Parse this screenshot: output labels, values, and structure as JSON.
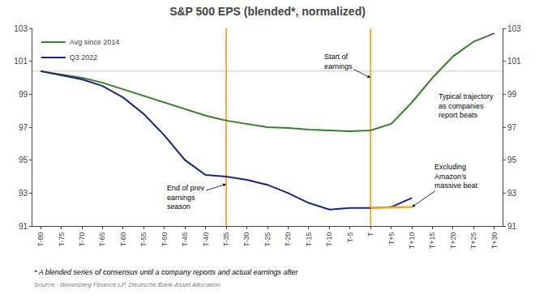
{
  "chart_data": {
    "type": "line",
    "title": "S&P 500 EPS (blended*, normalized)",
    "x": [
      -80,
      -75,
      -70,
      -65,
      -60,
      -55,
      -50,
      -45,
      -40,
      -35,
      -30,
      -25,
      -20,
      -15,
      -10,
      -5,
      0,
      5,
      10,
      15,
      20,
      25,
      30
    ],
    "series": [
      {
        "name": "Avg since 2014",
        "color": "#3a7d2c",
        "values": [
          100.4,
          100.2,
          100.0,
          99.7,
          99.3,
          98.9,
          98.5,
          98.1,
          97.7,
          97.4,
          97.2,
          97.0,
          96.95,
          96.85,
          96.8,
          96.75,
          96.8,
          97.2,
          98.5,
          100.0,
          101.3,
          102.2,
          102.7
        ]
      },
      {
        "name": "Q3 2022",
        "color": "#1a237e",
        "values": [
          100.4,
          100.15,
          99.9,
          99.5,
          98.8,
          97.8,
          96.5,
          95.0,
          94.1,
          94.0,
          93.8,
          93.5,
          93.0,
          92.4,
          92.0,
          92.1,
          92.1,
          92.15,
          92.7,
          null,
          null,
          null,
          null
        ]
      },
      {
        "color": "#f5a623",
        "x": [
          0,
          10
        ],
        "values": [
          92.1,
          92.15
        ]
      }
    ],
    "xlim": [
      -82,
      32
    ],
    "xticks": [
      {
        "value": -80,
        "label": "T-80"
      },
      {
        "value": -75,
        "label": "T-75"
      },
      {
        "value": -70,
        "label": "T-70"
      },
      {
        "value": -65,
        "label": "T-65"
      },
      {
        "value": -60,
        "label": "T-60"
      },
      {
        "value": -55,
        "label": "T-55"
      },
      {
        "value": -50,
        "label": "T-50"
      },
      {
        "value": -45,
        "label": "T-45"
      },
      {
        "value": -40,
        "label": "T-40"
      },
      {
        "value": -35,
        "label": "T-35"
      },
      {
        "value": -30,
        "label": "T-30"
      },
      {
        "value": -25,
        "label": "T-25"
      },
      {
        "value": -20,
        "label": "T-20"
      },
      {
        "value": -15,
        "label": "T-15"
      },
      {
        "value": -10,
        "label": "T-10"
      },
      {
        "value": -5,
        "label": "T-5"
      },
      {
        "value": 0,
        "label": "T"
      },
      {
        "value": 5,
        "label": "T+5"
      },
      {
        "value": 10,
        "label": "T+10"
      },
      {
        "value": 15,
        "label": "T+15"
      },
      {
        "value": 20,
        "label": "T+20"
      },
      {
        "value": 25,
        "label": "T+25"
      },
      {
        "value": 30,
        "label": "T+30"
      }
    ],
    "ylim": [
      91,
      103
    ],
    "yticks": [
      91,
      93,
      95,
      97,
      99,
      101,
      103
    ],
    "y2lim": [
      91,
      103
    ],
    "y2ticks": [
      91,
      93,
      95,
      97,
      99,
      101,
      103
    ],
    "reference_lines": [
      {
        "axis": "y",
        "value": 100.4,
        "color": "gray"
      },
      {
        "axis": "x",
        "value": -35,
        "color": "#f5a623"
      },
      {
        "axis": "x",
        "value": 0,
        "color": "#f5a623"
      }
    ],
    "annotations": [
      {
        "text": "End of prev\nearnings\nseason",
        "x": -35,
        "y": 93.55
      },
      {
        "text": "Start of\nearnings",
        "x": 0,
        "y": 100.0
      },
      {
        "text": "Excluding\nAmazon’s\nmassive beat",
        "x": 10,
        "y": 92.15
      }
    ],
    "texts": [
      {
        "text": "Typical trajectory\nas companies\nreport beats",
        "x": 16,
        "y": 98.3
      }
    ],
    "footnote": "* A blended series of consensus until a company reports and actual earnings after",
    "source": "Source : Bloomberg Finance LP, Deutsche Bank Asset Allocation",
    "legend": "upper left",
    "grid": false
  }
}
